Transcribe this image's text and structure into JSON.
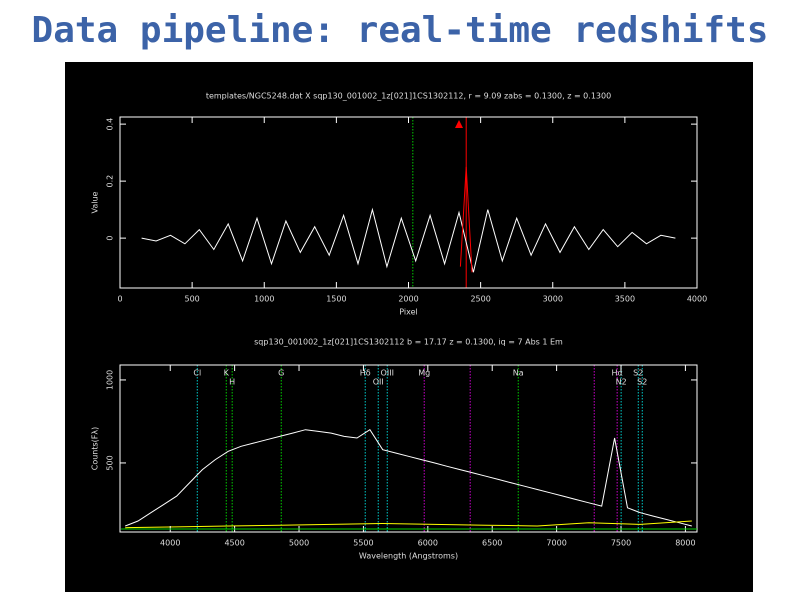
{
  "slide_title": "Data pipeline: real-time redshifts",
  "chart_data": [
    {
      "type": "line",
      "title": "templates/NGC5248.dat X sqp130_001002_1z[021]1CS1302112, r = 9.09 zabs = 0.1300, z = 0.1300",
      "x_label": "Pixel",
      "y_label": "Value",
      "xlim": [
        0,
        4000
      ],
      "xticks": [
        0,
        500,
        1000,
        1500,
        2000,
        2500,
        3000,
        3500,
        4000
      ],
      "ylim": [
        -0.175,
        0.425
      ],
      "yticks": [
        0,
        0.2,
        0.4
      ],
      "series": [
        {
          "color": "#ffffff",
          "x": [
            150,
            250,
            350,
            450,
            550,
            650,
            750,
            850,
            950,
            1050,
            1150,
            1250,
            1350,
            1450,
            1550,
            1650,
            1750,
            1850,
            1950,
            2050,
            2150,
            2250,
            2350,
            2450,
            2550,
            2650,
            2750,
            2850,
            2950,
            3050,
            3150,
            3250,
            3350,
            3450,
            3550,
            3650,
            3750,
            3850
          ],
          "values": [
            0.0,
            -0.01,
            0.01,
            -0.02,
            0.03,
            -0.04,
            0.05,
            -0.08,
            0.07,
            -0.09,
            0.06,
            -0.05,
            0.04,
            -0.06,
            0.08,
            -0.09,
            0.1,
            -0.1,
            0.07,
            -0.08,
            0.08,
            -0.09,
            0.09,
            -0.12,
            0.1,
            -0.08,
            0.07,
            -0.06,
            0.05,
            -0.05,
            0.04,
            -0.04,
            0.03,
            -0.03,
            0.02,
            -0.02,
            0.01,
            0.0
          ]
        },
        {
          "color": "#ff0000",
          "x": [
            2360,
            2400,
            2440
          ],
          "values": [
            -0.1,
            0.25,
            -0.12
          ]
        }
      ],
      "markers": [
        {
          "x": 2030,
          "color": "#00cc00"
        },
        {
          "x": 2400,
          "color": "#ff0000"
        }
      ]
    },
    {
      "type": "line",
      "title": "sqp130_001002_1z[021]1CS1302112     b = 17.17  z = 0.1300, iq = 7 Abs 1 Em",
      "x_label": "Wavelength (Angstroms)",
      "y_label": "Counts(Fλ)",
      "xlim": [
        3610,
        8090
      ],
      "xticks": [
        4000,
        4500,
        5000,
        5500,
        6000,
        6500,
        7000,
        7500,
        8000
      ],
      "ylim": [
        84,
        1090
      ],
      "yticks": [
        500,
        1000
      ],
      "series": [
        {
          "color": "#ffffff",
          "x": [
            3650,
            3750,
            3850,
            3950,
            4050,
            4150,
            4250,
            4350,
            4450,
            4550,
            4650,
            4750,
            4850,
            4950,
            5050,
            5150,
            5250,
            5350,
            5450,
            5550,
            5650,
            5750,
            5850,
            5950,
            6050,
            6150,
            6250,
            6350,
            6450,
            6550,
            6650,
            6750,
            6850,
            6950,
            7050,
            7150,
            7250,
            7350,
            7450,
            7550,
            7650,
            7750,
            7850,
            7950,
            8050
          ],
          "values": [
            120,
            150,
            200,
            250,
            300,
            380,
            460,
            520,
            570,
            600,
            620,
            640,
            660,
            680,
            700,
            690,
            680,
            660,
            650,
            700,
            580,
            560,
            540,
            520,
            500,
            480,
            460,
            440,
            420,
            400,
            380,
            360,
            340,
            320,
            300,
            280,
            260,
            240,
            650,
            230,
            200,
            180,
            160,
            140,
            120
          ]
        },
        {
          "color": "#ffff00",
          "x": [
            3650,
            4050,
            4450,
            4850,
            5250,
            5650,
            6050,
            6450,
            6850,
            7250,
            7650,
            8050
          ],
          "values": [
            110,
            115,
            120,
            125,
            130,
            135,
            130,
            125,
            120,
            140,
            130,
            150
          ]
        }
      ],
      "markers": [
        {
          "x": 4210,
          "label": "Cl",
          "color": "#00cccc"
        },
        {
          "x": 4435,
          "label": "K",
          "color": "#00cc00"
        },
        {
          "x": 4481,
          "label": "H",
          "color": "#00cc00"
        },
        {
          "x": 4862,
          "label": "G",
          "color": "#00cc00"
        },
        {
          "x": 5514,
          "label": "Hδ",
          "color": "#00cccc"
        },
        {
          "x": 5615,
          "label": "OII",
          "color": "#00cccc"
        },
        {
          "x": 5685,
          "label": "OIII",
          "color": "#00cccc"
        },
        {
          "x": 5972,
          "label": "Mg",
          "color": "#cc00cc"
        },
        {
          "x": 6329,
          "color": "#cc00cc"
        },
        {
          "x": 6702,
          "label": "Na",
          "color": "#00cc00"
        },
        {
          "x": 7292,
          "color": "#cc00cc"
        },
        {
          "x": 7470,
          "label": "Hα",
          "color": "#cc00cc"
        },
        {
          "x": 7501,
          "label": "N2",
          "color": "#00cccc"
        },
        {
          "x": 7634,
          "label": "S2",
          "color": "#00cccc"
        },
        {
          "x": 7665,
          "label": "S2",
          "color": "#00cccc"
        }
      ]
    }
  ]
}
